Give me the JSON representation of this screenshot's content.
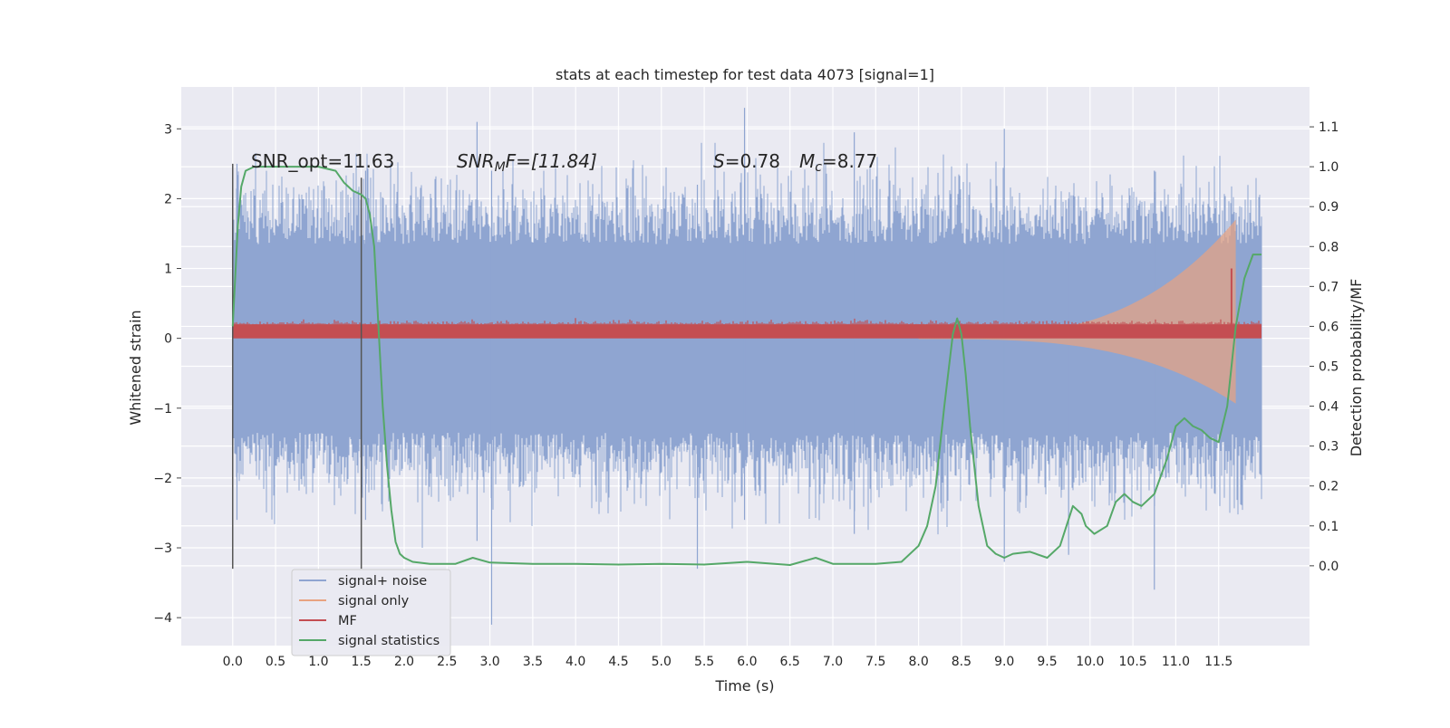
{
  "chart_data": {
    "type": "line",
    "title": "stats at each timestep for test data 4073 [signal=1]",
    "xlabel": "Time (s)",
    "ylabel_left": "Whitened strain",
    "ylabel_right": "Detection probability/MF",
    "xlim": [
      -0.6,
      12.56
    ],
    "ylim_left": [
      -4.4,
      3.6
    ],
    "ylim_right": [
      -0.2,
      1.2
    ],
    "xticks": [
      "0.0",
      "0.5",
      "1.0",
      "1.5",
      "2.0",
      "2.5",
      "3.0",
      "3.5",
      "4.0",
      "4.5",
      "5.0",
      "5.5",
      "6.0",
      "6.5",
      "7.0",
      "7.5",
      "8.0",
      "8.5",
      "9.0",
      "9.5",
      "10.0",
      "10.5",
      "11.0",
      "11.5"
    ],
    "yticks_left": [
      "3",
      "2",
      "1",
      "0",
      "−1",
      "−2",
      "−3",
      "−4"
    ],
    "yticks_right": [
      "1.1",
      "1.0",
      "0.9",
      "0.8",
      "0.7",
      "0.6",
      "0.5",
      "0.4",
      "0.3",
      "0.2",
      "0.1",
      "0.0"
    ],
    "grid": true,
    "legend_position": "lower-left",
    "annotations": {
      "snr_opt": "SNR_opt=11.63",
      "snr_mf_prefix": "SNR",
      "snr_mf_sub": "M",
      "snr_mf_suffix": "F=[11.84]",
      "s_label": "S",
      "s_value": "=0.78",
      "mc_label": "M",
      "mc_sub": "c",
      "mc_value": "=8.77"
    },
    "vlines": [
      {
        "x": 0.0,
        "ymin": -3.3,
        "ymax": 2.5
      },
      {
        "x": 1.5,
        "ymin": -3.3,
        "ymax": 2.3
      }
    ],
    "series": [
      {
        "name": "signal+ noise",
        "color": "#8fa5d1",
        "x_range": [
          0.0,
          12.0
        ],
        "envelope_core": 1.35,
        "peak_max": 3.3,
        "peak_min": -4.1
      },
      {
        "name": "signal only",
        "color": "#e8a380",
        "x_range": [
          8.0,
          11.7
        ],
        "amplitude_start": 0.02,
        "amplitude_end": 1.7
      },
      {
        "name": "MF",
        "color": "#c44e52",
        "x_range": [
          0.0,
          12.0
        ],
        "center": 0.1,
        "half_width": 0.1,
        "spike": {
          "x": 11.65,
          "y": 1.0
        }
      },
      {
        "name": "signal statistics",
        "color": "#55a868",
        "axis": "right",
        "x": [
          0.0,
          0.06,
          0.1,
          0.15,
          0.25,
          0.4,
          0.6,
          0.8,
          1.0,
          1.2,
          1.3,
          1.4,
          1.5,
          1.55,
          1.6,
          1.65,
          1.7,
          1.75,
          1.8,
          1.85,
          1.9,
          1.95,
          2.0,
          2.1,
          2.3,
          2.6,
          2.8,
          3.0,
          3.5,
          4.0,
          4.5,
          5.0,
          5.5,
          6.0,
          6.5,
          6.8,
          7.0,
          7.5,
          7.8,
          8.0,
          8.1,
          8.2,
          8.3,
          8.4,
          8.45,
          8.5,
          8.55,
          8.6,
          8.7,
          8.8,
          8.9,
          9.0,
          9.1,
          9.3,
          9.5,
          9.65,
          9.8,
          9.9,
          9.95,
          10.05,
          10.2,
          10.3,
          10.4,
          10.5,
          10.6,
          10.75,
          10.9,
          11.0,
          11.1,
          11.2,
          11.3,
          11.4,
          11.5,
          11.6,
          11.7,
          11.8,
          11.9,
          11.95,
          12.0
        ],
        "y": [
          0.6,
          0.85,
          0.95,
          0.99,
          1.0,
          1.0,
          1.0,
          1.0,
          1.0,
          0.99,
          0.96,
          0.94,
          0.93,
          0.92,
          0.88,
          0.8,
          0.6,
          0.4,
          0.25,
          0.14,
          0.06,
          0.03,
          0.02,
          0.01,
          0.005,
          0.005,
          0.02,
          0.008,
          0.005,
          0.005,
          0.003,
          0.005,
          0.003,
          0.01,
          0.002,
          0.02,
          0.005,
          0.005,
          0.01,
          0.05,
          0.1,
          0.2,
          0.4,
          0.58,
          0.62,
          0.58,
          0.48,
          0.35,
          0.15,
          0.05,
          0.03,
          0.02,
          0.03,
          0.035,
          0.02,
          0.05,
          0.15,
          0.13,
          0.1,
          0.08,
          0.1,
          0.16,
          0.18,
          0.16,
          0.15,
          0.18,
          0.27,
          0.35,
          0.37,
          0.35,
          0.34,
          0.32,
          0.31,
          0.4,
          0.6,
          0.72,
          0.78,
          0.78,
          0.78
        ]
      }
    ]
  }
}
